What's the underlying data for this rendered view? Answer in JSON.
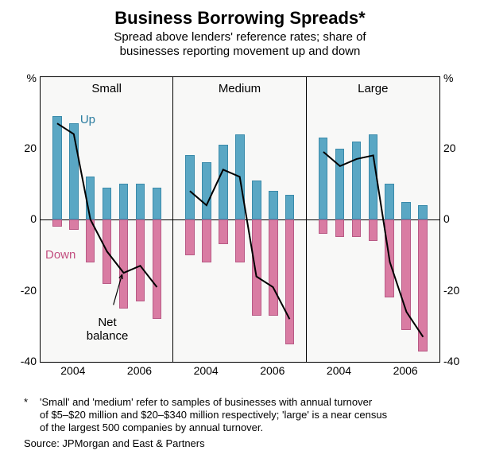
{
  "title": "Business Borrowing Spreads*",
  "subtitle_l1": "Spread above lenders' reference rates; share of",
  "subtitle_l2": "businesses reporting movement up and down",
  "ylim": [
    -40,
    40
  ],
  "yticks": [
    -40,
    -20,
    0,
    20
  ],
  "yunit": "%",
  "xticks": [
    "2004",
    "2006"
  ],
  "panels": [
    {
      "name": "Small",
      "periods": [
        "2003H2",
        "2004H1",
        "2004H2",
        "2005H1",
        "2005H2",
        "2006H1",
        "2006H2"
      ],
      "up": [
        29,
        27,
        12,
        9,
        10,
        10,
        9
      ],
      "down": [
        -2,
        -3,
        -12,
        -18,
        -25,
        -23,
        -28
      ],
      "net": [
        27,
        24,
        0,
        -9,
        -15,
        -13,
        -19
      ],
      "labels": {
        "up": true,
        "down": true,
        "net": true,
        "arrow": true
      }
    },
    {
      "name": "Medium",
      "periods": [
        "2003H2",
        "2004H1",
        "2004H2",
        "2005H1",
        "2005H2",
        "2006H1",
        "2006H2"
      ],
      "up": [
        18,
        16,
        21,
        24,
        11,
        8,
        7
      ],
      "down": [
        -10,
        -12,
        -7,
        -12,
        -27,
        -27,
        -35
      ],
      "net": [
        8,
        4,
        14,
        12,
        -16,
        -19,
        -28
      ],
      "labels": {
        "up": false,
        "down": false,
        "net": false,
        "arrow": false
      }
    },
    {
      "name": "Large",
      "periods": [
        "2003H2",
        "2004H1",
        "2004H2",
        "2005H1",
        "2005H2",
        "2006H1",
        "2006H2"
      ],
      "up": [
        23,
        20,
        22,
        24,
        10,
        5,
        4
      ],
      "down": [
        -4,
        -5,
        -5,
        -6,
        -22,
        -31,
        -37
      ],
      "net": [
        19,
        15,
        17,
        18,
        -12,
        -26,
        -33
      ],
      "labels": {
        "up": false,
        "down": false,
        "net": false,
        "arrow": false
      }
    }
  ],
  "colors": {
    "up": "#5aa7c4",
    "down": "#d97ca3",
    "line": "#000000",
    "bg": "#f8f8f7",
    "border": "#000000",
    "up_label": "#2b7ca0",
    "down_label": "#c24e7f"
  },
  "anno": {
    "up": "Up",
    "down": "Down",
    "net_l1": "Net",
    "net_l2": "balance"
  },
  "footnote_star": "*",
  "footnote_l1": "'Small' and 'medium' refer to samples of businesses with annual turnover",
  "footnote_l2": "of $5–$20 million and $20–$340 million respectively; 'large' is a near census",
  "footnote_l3": "of the largest 500 companies by annual turnover.",
  "source": "Source: JPMorgan and East & Partners"
}
